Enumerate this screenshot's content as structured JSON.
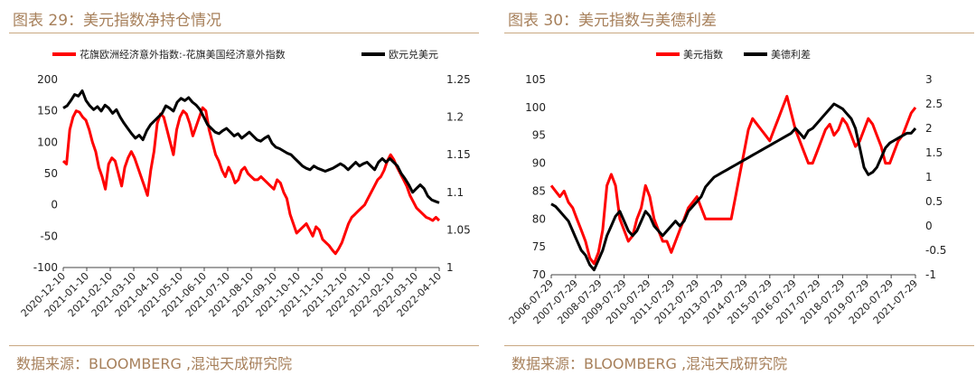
{
  "charts": [
    {
      "title": "图表 29：美元指数净持仓情况",
      "source": "数据来源：BLOOMBERG ,混沌天成研究院"
    },
    {
      "title": "图表 30：美元指数与美德利差",
      "source": "数据来源：BLOOMBERG ,混沌天成研究院"
    }
  ],
  "chart_data": [
    {
      "type": "line",
      "title": "图表 29：美元指数净持仓情况",
      "legend_position": "top",
      "x_ticks": [
        "2020-12-10",
        "2021-01-10",
        "2021-02-10",
        "2021-03-10",
        "2021-04-10",
        "2021-05-10",
        "2021-06-10",
        "2021-07-10",
        "2021-08-10",
        "2021-09-10",
        "2021-10-10",
        "2021-11-10",
        "2021-12-10",
        "2022-01-10",
        "2022-02-10",
        "2022-03-10",
        "2022-04-10"
      ],
      "y_left": {
        "ticks": [
          "200",
          "150",
          "100",
          "50",
          "0",
          "-50",
          "-100"
        ],
        "range": [
          -100,
          200
        ]
      },
      "y_right": {
        "ticks": [
          "1.25",
          "1.2",
          "1.15",
          "1.1",
          "1.05",
          "1"
        ],
        "range": [
          1.0,
          1.25
        ]
      },
      "grid": false,
      "series": [
        {
          "name": "花旗欧洲经济意外指数:-花旗美国经济意外指数",
          "color": "#ff0000",
          "axis": "left",
          "values": [
            70,
            65,
            120,
            140,
            150,
            148,
            140,
            135,
            120,
            100,
            85,
            60,
            45,
            25,
            65,
            75,
            70,
            50,
            30,
            60,
            75,
            85,
            75,
            60,
            45,
            30,
            15,
            55,
            85,
            130,
            145,
            140,
            120,
            100,
            80,
            120,
            140,
            150,
            145,
            130,
            110,
            125,
            140,
            155,
            150,
            120,
            100,
            80,
            70,
            55,
            45,
            60,
            50,
            35,
            40,
            55,
            60,
            50,
            45,
            40,
            40,
            45,
            40,
            35,
            30,
            25,
            40,
            35,
            20,
            10,
            -15,
            -30,
            -45,
            -40,
            -35,
            -30,
            -40,
            -50,
            -35,
            -40,
            -55,
            -60,
            -65,
            -72,
            -78,
            -70,
            -60,
            -45,
            -30,
            -20,
            -15,
            -10,
            -5,
            0,
            10,
            20,
            30,
            40,
            45,
            55,
            70,
            80,
            72,
            60,
            50,
            40,
            30,
            15,
            5,
            -5,
            -10,
            -15,
            -20,
            -22,
            -25,
            -20,
            -25
          ]
        },
        {
          "name": "欧元兑美元",
          "color": "#000000",
          "axis": "right",
          "values": [
            1.212,
            1.215,
            1.222,
            1.23,
            1.228,
            1.235,
            1.222,
            1.215,
            1.21,
            1.214,
            1.208,
            1.216,
            1.212,
            1.205,
            1.21,
            1.2,
            1.192,
            1.185,
            1.178,
            1.172,
            1.176,
            1.17,
            1.182,
            1.19,
            1.195,
            1.2,
            1.205,
            1.215,
            1.212,
            1.208,
            1.22,
            1.225,
            1.222,
            1.226,
            1.22,
            1.216,
            1.21,
            1.2,
            1.19,
            1.185,
            1.18,
            1.178,
            1.182,
            1.185,
            1.18,
            1.175,
            1.178,
            1.172,
            1.176,
            1.18,
            1.175,
            1.17,
            1.168,
            1.172,
            1.175,
            1.165,
            1.16,
            1.158,
            1.155,
            1.152,
            1.15,
            1.145,
            1.14,
            1.135,
            1.132,
            1.13,
            1.135,
            1.132,
            1.13,
            1.128,
            1.13,
            1.132,
            1.135,
            1.138,
            1.135,
            1.13,
            1.135,
            1.14,
            1.135,
            1.138,
            1.14,
            1.135,
            1.13,
            1.14,
            1.145,
            1.14,
            1.145,
            1.14,
            1.135,
            1.125,
            1.118,
            1.11,
            1.1,
            1.105,
            1.11,
            1.105,
            1.095,
            1.09,
            1.088,
            1.086
          ]
        }
      ]
    },
    {
      "type": "line",
      "title": "图表 30：美元指数与美德利差",
      "legend_position": "top",
      "x_ticks": [
        "2006-07-29",
        "2007-07-29",
        "2008-07-29",
        "2009-07-29",
        "2010-07-29",
        "2011-07-29",
        "2012-07-29",
        "2013-07-29",
        "2014-07-29",
        "2015-07-29",
        "2016-07-29",
        "2017-07-29",
        "2018-07-29",
        "2019-07-29",
        "2020-07-29",
        "2021-07-29"
      ],
      "y_left": {
        "ticks": [
          "105",
          "100",
          "95",
          "90",
          "85",
          "80",
          "75",
          "70"
        ],
        "range": [
          70,
          105
        ]
      },
      "y_right": {
        "ticks": [
          "3",
          "2.5",
          "2",
          "1.5",
          "1",
          "0.5",
          "0",
          "-0.5",
          "-1"
        ],
        "range": [
          -1,
          3
        ]
      },
      "grid": false,
      "series": [
        {
          "name": "美元指数",
          "color": "#ff0000",
          "axis": "left",
          "values": [
            86,
            85,
            84,
            85,
            83,
            82,
            80,
            78,
            76,
            73,
            72,
            74,
            78,
            86,
            88,
            86,
            80,
            78,
            76,
            77,
            80,
            82,
            86,
            84,
            80,
            78,
            76,
            76,
            74,
            76,
            78,
            80,
            82,
            83,
            84,
            82,
            80,
            80,
            80,
            80,
            80,
            80,
            80,
            84,
            88,
            92,
            96,
            98,
            97,
            96,
            95,
            94,
            96,
            98,
            100,
            102,
            99,
            96,
            94,
            92,
            90,
            90,
            92,
            94,
            96,
            97,
            95,
            96,
            98,
            97,
            95,
            93,
            94,
            96,
            98,
            97,
            95,
            93,
            90,
            90,
            92,
            94,
            95,
            97,
            99,
            100
          ]
        },
        {
          "name": "美德利差",
          "color": "#000000",
          "axis": "right",
          "values": [
            0.45,
            0.4,
            0.3,
            0.2,
            0.1,
            -0.1,
            -0.3,
            -0.5,
            -0.6,
            -0.8,
            -0.9,
            -0.7,
            -0.5,
            -0.2,
            0.0,
            0.2,
            0.3,
            0.1,
            -0.1,
            -0.2,
            -0.1,
            0.1,
            0.3,
            0.2,
            0.0,
            -0.1,
            -0.2,
            -0.1,
            0.0,
            0.1,
            0.0,
            0.1,
            0.3,
            0.4,
            0.5,
            0.6,
            0.8,
            0.9,
            1.0,
            1.05,
            1.1,
            1.15,
            1.2,
            1.25,
            1.3,
            1.35,
            1.4,
            1.45,
            1.5,
            1.55,
            1.6,
            1.65,
            1.7,
            1.75,
            1.8,
            1.85,
            1.9,
            2.0,
            1.9,
            1.8,
            1.95,
            2.0,
            2.1,
            2.2,
            2.3,
            2.4,
            2.5,
            2.45,
            2.4,
            2.3,
            2.2,
            2.0,
            1.6,
            1.2,
            1.05,
            1.1,
            1.2,
            1.4,
            1.6,
            1.7,
            1.75,
            1.8,
            1.85,
            1.9,
            1.9,
            2.0
          ]
        }
      ]
    }
  ]
}
